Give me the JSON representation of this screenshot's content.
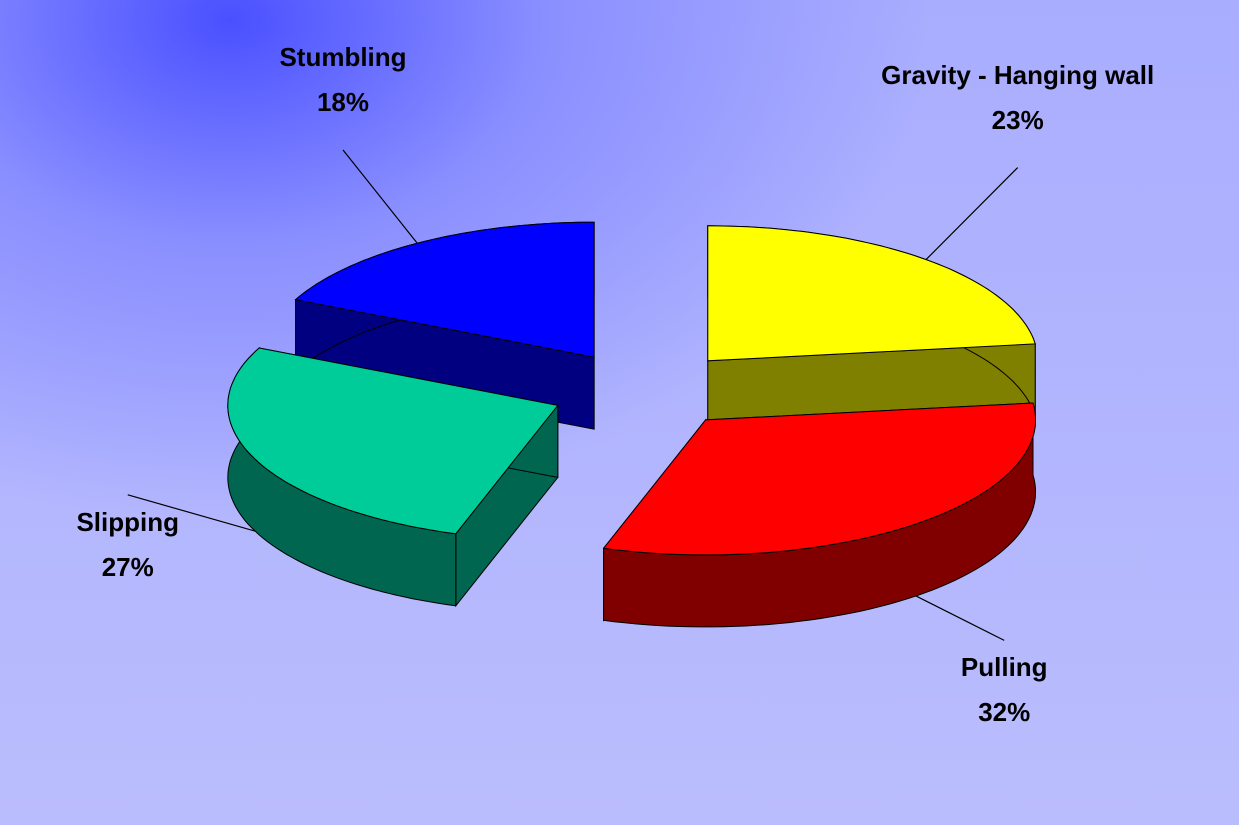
{
  "chart_data": {
    "type": "pie",
    "categories": [
      "Gravity - Hanging wall",
      "Pulling",
      "Slipping",
      "Stumbling"
    ],
    "values": [
      23,
      32,
      27,
      18
    ],
    "value_labels": [
      "23%",
      "32%",
      "27%",
      "18%"
    ],
    "colors": [
      "#ffff00",
      "#ff0000",
      "#00cc99",
      "#0000ff"
    ],
    "side_colors": [
      "#808000",
      "#800000",
      "#006650",
      "#000080"
    ]
  }
}
